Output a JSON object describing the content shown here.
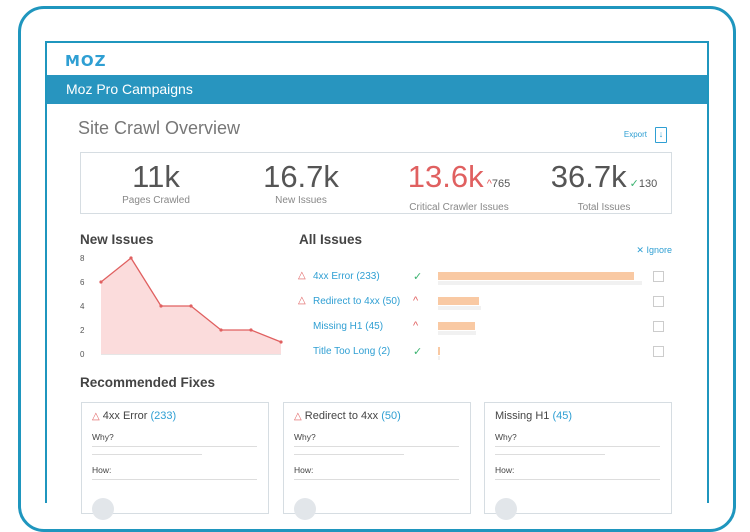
{
  "app": {
    "logo": "MOZ",
    "title": "Moz Pro Campaigns"
  },
  "page": {
    "title": "Site Crawl Overview",
    "export_label": "Export"
  },
  "stats": [
    {
      "value": "11k",
      "label": "Pages Crawled",
      "delta": "",
      "color": "#555555"
    },
    {
      "value": "16.7k",
      "label": "New Issues",
      "delta": "",
      "color": "#555555"
    },
    {
      "value": "13.6k",
      "label": "Critical Crawler Issues",
      "delta": "765",
      "delta_dir": "up",
      "color": "#e06060"
    },
    {
      "value": "36.7k",
      "label": "Total Issues",
      "delta": "130",
      "delta_dir": "down",
      "color": "#555555"
    }
  ],
  "new_issues": {
    "title": "New Issues"
  },
  "chart_data": {
    "type": "area",
    "title": "New Issues",
    "x": [
      1,
      2,
      3,
      4,
      5,
      6,
      7
    ],
    "values": [
      6,
      8,
      4,
      4,
      2,
      2,
      1
    ],
    "yticks": [
      "8",
      "6",
      "4",
      "2",
      "0"
    ],
    "ylim": [
      0,
      8
    ],
    "color": "#e06060"
  },
  "all_issues": {
    "title": "All Issues",
    "ignore_label": "Ignore",
    "rows": [
      {
        "name": "4xx Error (233)",
        "warn": true,
        "trend": "down",
        "fraction": 0.85
      },
      {
        "name": "Redirect to 4xx (50)",
        "warn": true,
        "trend": "up",
        "fraction": 0.18
      },
      {
        "name": "Missing H1 (45)",
        "warn": false,
        "trend": "up",
        "fraction": 0.16
      },
      {
        "name": "Title Too Long (2)",
        "warn": false,
        "trend": "down",
        "fraction": 0.01
      }
    ]
  },
  "fixes": {
    "title": "Recommended Fixes",
    "cards": [
      {
        "name": "4xx Error",
        "count": "(233)",
        "warn": true,
        "why": "Why?",
        "how": "How:"
      },
      {
        "name": "Redirect to 4xx",
        "count": "(50)",
        "warn": true,
        "why": "Why?",
        "how": "How:"
      },
      {
        "name": "Missing H1",
        "count": "(45)",
        "warn": false,
        "why": "Why?",
        "how": "How:"
      }
    ]
  }
}
